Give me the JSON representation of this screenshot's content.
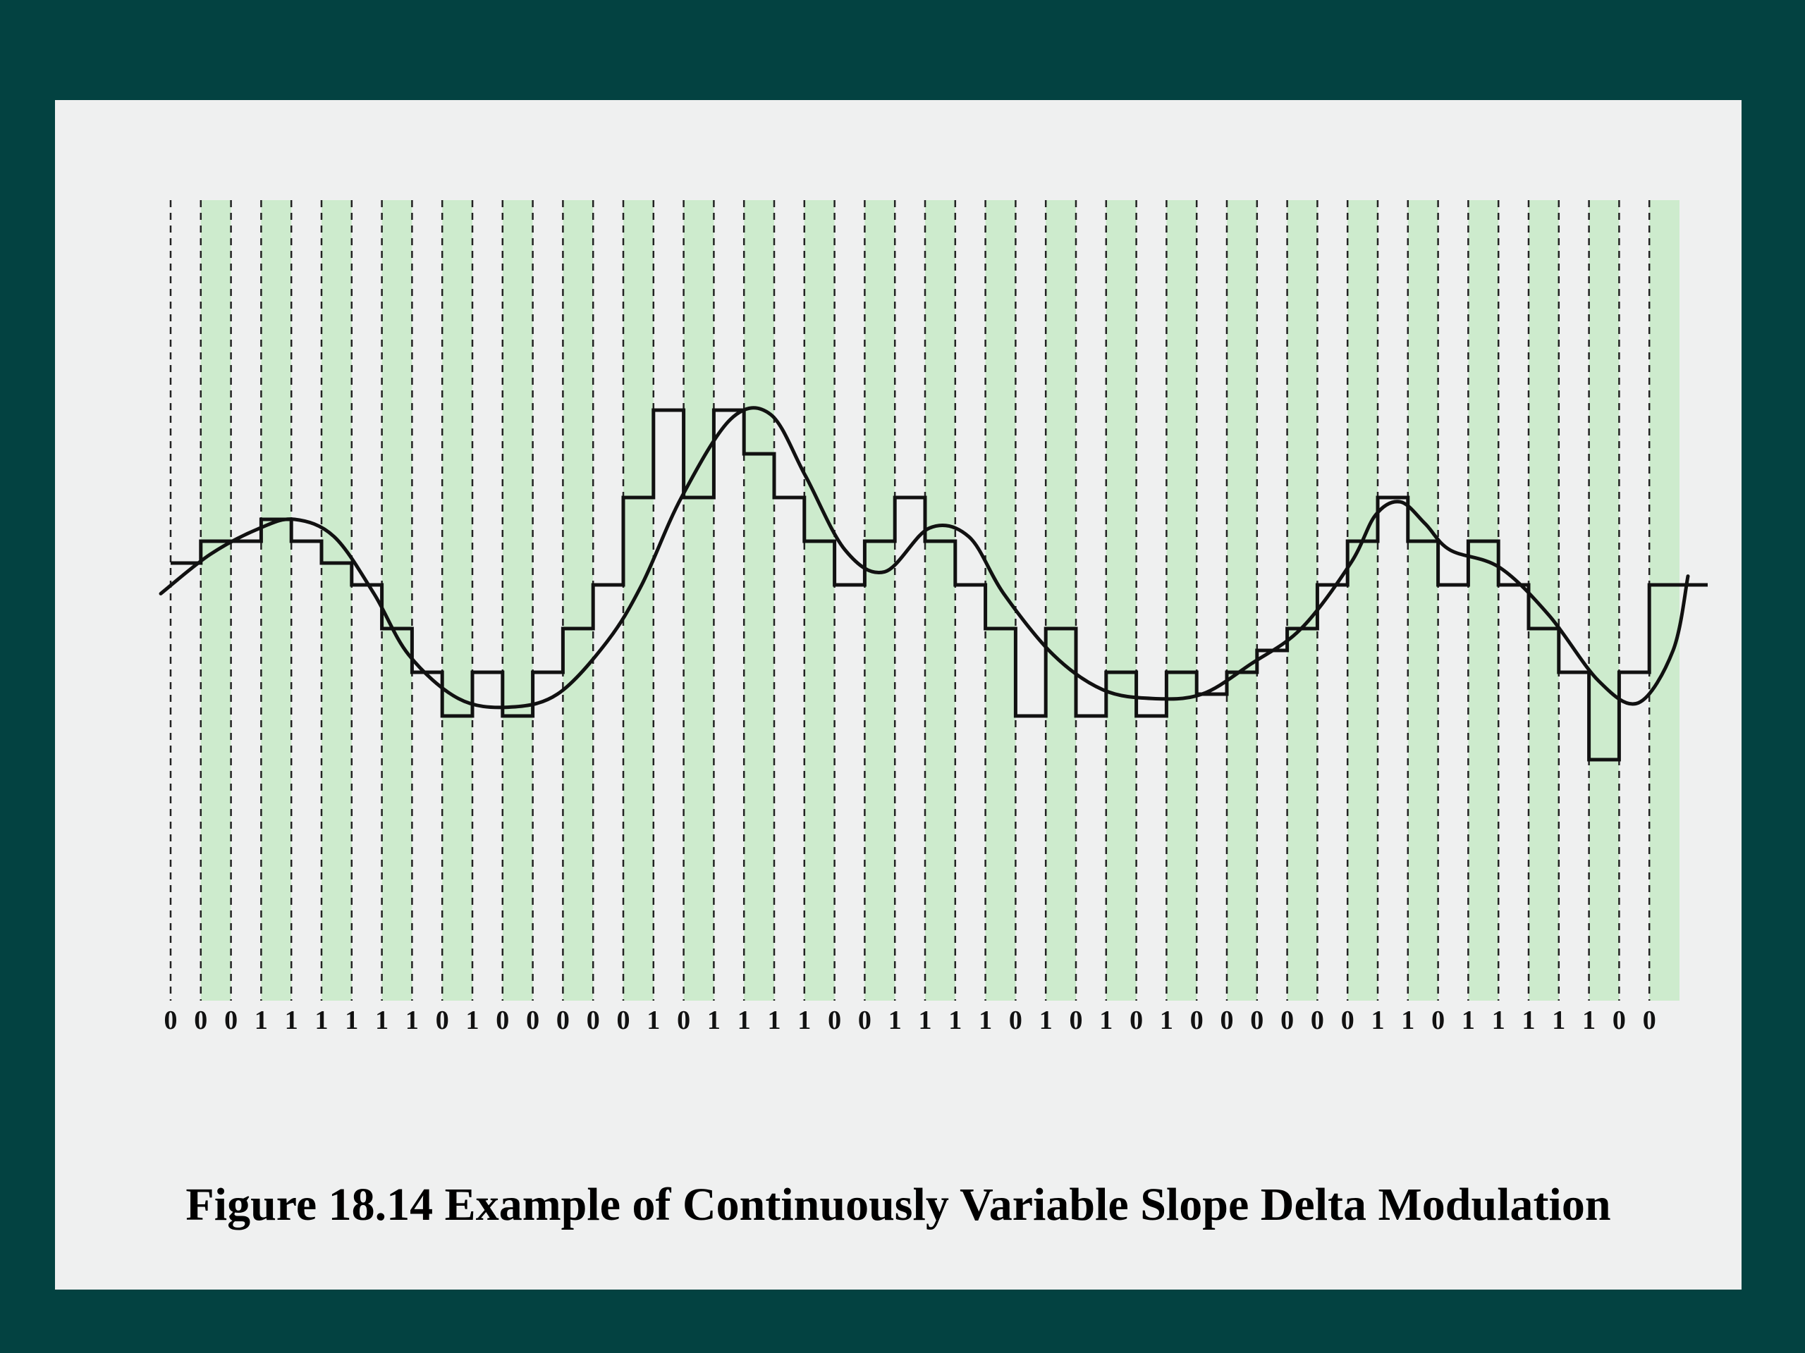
{
  "figure": {
    "caption": "Figure 18.14  Example of Continuously Variable Slope Delta Modulation",
    "colors": {
      "background": "#034241",
      "panel": "#eff0f0",
      "stripe": "#cdebcd",
      "line": "#111111"
    },
    "bits": [
      "0",
      "0",
      "0",
      "1",
      "1",
      "1",
      "1",
      "1",
      "1",
      "0",
      "1",
      "0",
      "0",
      "0",
      "0",
      "0",
      "1",
      "0",
      "1",
      "1",
      "1",
      "1",
      "0",
      "0",
      "1",
      "1",
      "1",
      "1",
      "0",
      "1",
      "0",
      "1",
      "0",
      "1",
      "0",
      "0",
      "0",
      "0",
      "0",
      "0",
      "1",
      "1",
      "0",
      "1",
      "1",
      "1",
      "1",
      "1",
      "0",
      "0"
    ],
    "staircase_levels": [
      0.5,
      1.0,
      1.0,
      1.5,
      1.0,
      0.5,
      0.0,
      -1.0,
      -2.0,
      -3.0,
      -2.0,
      -3.0,
      -2.0,
      -1.0,
      0.0,
      2.0,
      4.0,
      2.0,
      4.0,
      3.0,
      2.0,
      1.0,
      0.0,
      1.0,
      2.0,
      1.0,
      0.0,
      -1.0,
      -3.0,
      -1.0,
      -3.0,
      -2.0,
      -3.0,
      -2.0,
      -2.5,
      -2.0,
      -1.5,
      -1.0,
      0.0,
      1.0,
      2.0,
      1.0,
      0.0,
      1.0,
      0.0,
      -1.0,
      -2.0,
      -4.0,
      -2.0,
      0.0
    ],
    "signal_points": [
      [
        0.0,
        -0.2
      ],
      [
        1.0,
        0.7
      ],
      [
        2.0,
        1.3
      ],
      [
        2.7,
        1.5
      ],
      [
        3.5,
        1.1
      ],
      [
        4.3,
        -0.2
      ],
      [
        5.0,
        -1.6
      ],
      [
        6.0,
        -2.6
      ],
      [
        7.0,
        -2.8
      ],
      [
        8.0,
        -2.5
      ],
      [
        9.0,
        -1.3
      ],
      [
        9.7,
        0.0
      ],
      [
        10.5,
        2.0
      ],
      [
        11.5,
        3.8
      ],
      [
        12.3,
        3.9
      ],
      [
        13.0,
        2.5
      ],
      [
        13.8,
        0.8
      ],
      [
        14.6,
        0.3
      ],
      [
        15.5,
        1.3
      ],
      [
        16.3,
        1.1
      ],
      [
        17.0,
        -0.2
      ],
      [
        18.0,
        -1.6
      ],
      [
        19.0,
        -2.4
      ],
      [
        20.0,
        -2.6
      ],
      [
        21.0,
        -2.5
      ],
      [
        22.0,
        -1.8
      ],
      [
        23.0,
        -1.0
      ],
      [
        24.0,
        0.5
      ],
      [
        24.5,
        1.6
      ],
      [
        25.0,
        1.9
      ],
      [
        25.5,
        1.4
      ],
      [
        26.0,
        0.8
      ],
      [
        27.0,
        0.4
      ],
      [
        28.0,
        -0.7
      ],
      [
        29.0,
        -2.2
      ],
      [
        29.8,
        -2.7
      ],
      [
        30.5,
        -1.5
      ],
      [
        30.8,
        0.2
      ]
    ]
  }
}
